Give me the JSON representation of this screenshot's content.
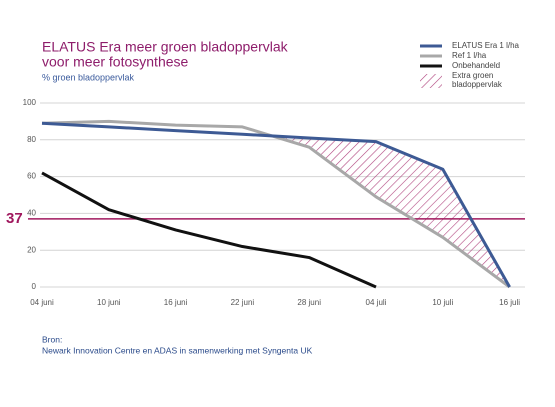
{
  "chart_data": {
    "type": "line",
    "title": [
      "ELATUS Era meer groen bladoppervlak",
      "voor meer fotosynthese"
    ],
    "subtitle": "% groen bladoppervlak",
    "categories": [
      "04 juni",
      "10 juni",
      "16 juni",
      "22 juni",
      "28 juni",
      "04 juli",
      "10 juli",
      "16 juli"
    ],
    "series": [
      {
        "name": "ELATUS Era 1 l/ha",
        "color": "#3d5a94",
        "values": [
          89,
          87,
          85,
          83,
          81,
          79,
          64,
          0
        ]
      },
      {
        "name": "Ref 1 l/ha",
        "color": "#a8a8a8",
        "values": [
          89,
          90,
          88,
          87,
          76,
          49,
          27,
          0
        ]
      },
      {
        "name": "Onbehandeld",
        "color": "#111111",
        "values": [
          62,
          42,
          31,
          22,
          16,
          0,
          null,
          null
        ]
      }
    ],
    "area_legend": [
      "Extra groen",
      "bladoppervlak"
    ],
    "area_color": "#b0467f",
    "hline": 37,
    "hline_color": "#a0185e",
    "ylim": [
      0,
      100
    ],
    "yticks": [
      0,
      20,
      40,
      60,
      80,
      100
    ],
    "grid": true,
    "source": [
      "Bron:",
      "Newark Innovation Centre en ADAS in samenwerking met Syngenta UK"
    ]
  }
}
